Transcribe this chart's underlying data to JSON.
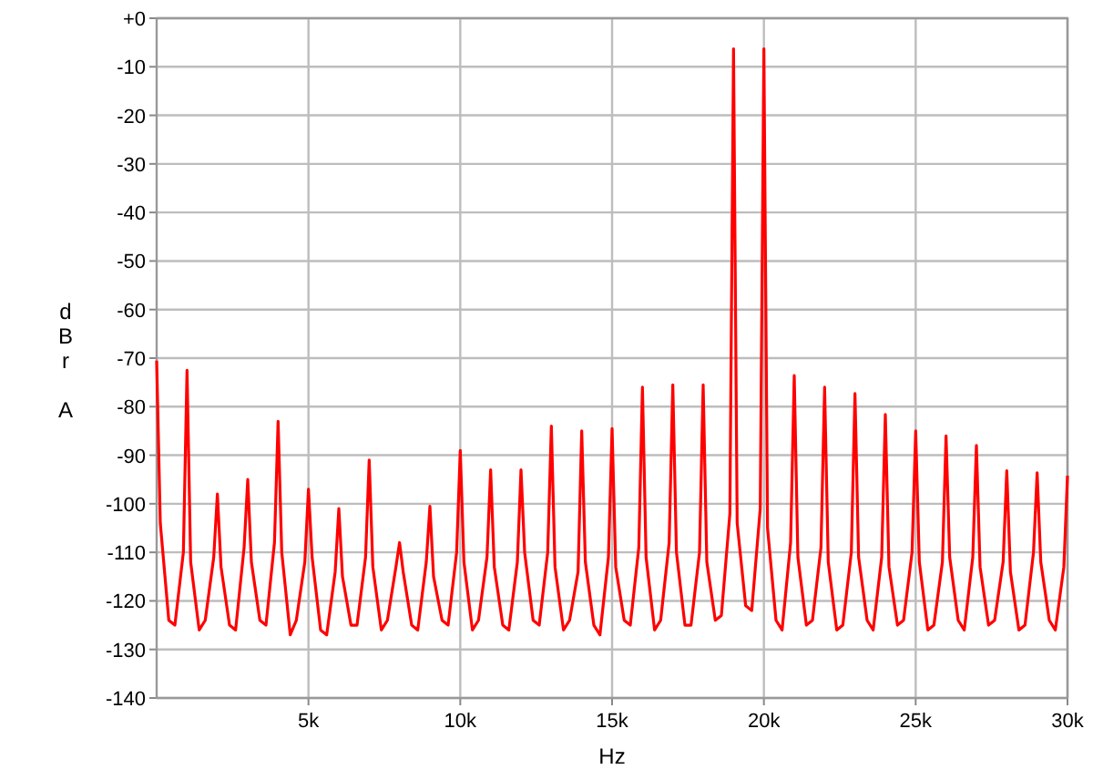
{
  "chart_data": {
    "type": "line",
    "xlabel": "Hz",
    "ylabel": "dBr A",
    "xlim": [
      0,
      30000
    ],
    "xticks": [
      {
        "value": 5000,
        "label": "5k"
      },
      {
        "value": 10000,
        "label": "10k"
      },
      {
        "value": 15000,
        "label": "15k"
      },
      {
        "value": 20000,
        "label": "20k"
      },
      {
        "value": 25000,
        "label": "25k"
      },
      {
        "value": 30000,
        "label": "30k"
      }
    ],
    "ylim": [
      -140,
      0
    ],
    "yticks": [
      {
        "value": 0,
        "label": "+0"
      },
      -10,
      -20,
      -30,
      -40,
      -50,
      -60,
      -70,
      -80,
      -90,
      -100,
      -110,
      -120,
      -130,
      -140
    ],
    "grid": true,
    "marker": "none",
    "line_style": "solid",
    "series": [
      {
        "color": "#ff0000",
        "x": [
          0,
          120,
          400,
          600,
          880,
          1000,
          1120,
          1400,
          1600,
          1880,
          2000,
          2120,
          2400,
          2600,
          2880,
          3000,
          3120,
          3400,
          3600,
          3880,
          4000,
          4120,
          4400,
          4600,
          4880,
          5000,
          5120,
          5400,
          5600,
          5880,
          6000,
          6120,
          6400,
          6600,
          6880,
          7000,
          7120,
          7400,
          7600,
          7880,
          8000,
          8120,
          8400,
          8600,
          8880,
          9000,
          9120,
          9400,
          9600,
          9880,
          10000,
          10120,
          10400,
          10600,
          10880,
          11000,
          11120,
          11400,
          11600,
          11880,
          12000,
          12120,
          12400,
          12600,
          12880,
          13000,
          13120,
          13400,
          13600,
          13880,
          14000,
          14120,
          14400,
          14600,
          14880,
          15000,
          15120,
          15400,
          15600,
          15880,
          16000,
          16120,
          16400,
          16600,
          16880,
          17000,
          17120,
          17400,
          17600,
          17880,
          18000,
          18120,
          18400,
          18600,
          18880,
          19000,
          19120,
          19400,
          19600,
          19880,
          20000,
          20120,
          20400,
          20600,
          20880,
          21000,
          21120,
          21400,
          21600,
          21880,
          22000,
          22120,
          22400,
          22600,
          22880,
          23000,
          23120,
          23400,
          23600,
          23880,
          24000,
          24120,
          24400,
          24600,
          24880,
          25000,
          25120,
          25400,
          25600,
          25880,
          26000,
          26120,
          26400,
          26600,
          26880,
          27000,
          27120,
          27400,
          27600,
          27880,
          28000,
          28120,
          28400,
          28600,
          28880,
          29000,
          29120,
          29400,
          29600,
          29880,
          30000
        ],
        "values": [
          -70.5,
          -104,
          -124,
          -125,
          -110,
          -72.5,
          -112,
          -126,
          -124,
          -111,
          -98,
          -113,
          -125,
          -126,
          -109,
          -95,
          -112,
          -124,
          -125,
          -108,
          -83,
          -110,
          -127,
          -124,
          -112,
          -97,
          -111,
          -126,
          -127,
          -114,
          -101,
          -115,
          -125,
          -125,
          -111,
          -91,
          -113,
          -126,
          -124,
          -113,
          -108,
          -114,
          -125,
          -126,
          -112,
          -100.5,
          -115,
          -124,
          -125,
          -110,
          -89,
          -112,
          -126,
          -124,
          -111,
          -93,
          -113,
          -125,
          -126,
          -112,
          -93,
          -110,
          -124,
          -125,
          -110,
          -84,
          -113,
          -126,
          -124,
          -114,
          -85,
          -112,
          -125,
          -127,
          -111,
          -84.5,
          -113,
          -124,
          -125,
          -109,
          -76,
          -111,
          -126,
          -124,
          -108,
          -75.5,
          -110,
          -125,
          -125,
          -110,
          -75.5,
          -112,
          -124,
          -123,
          -102,
          -6.3,
          -104,
          -121,
          -122,
          -101,
          -6.3,
          -105,
          -124,
          -126,
          -108,
          -73.6,
          -111,
          -125,
          -124,
          -109,
          -76,
          -112,
          -126,
          -125,
          -110,
          -77.3,
          -111,
          -124,
          -126,
          -111,
          -81.6,
          -113,
          -125,
          -124,
          -110,
          -85,
          -112,
          -126,
          -125,
          -112,
          -86,
          -111,
          -124,
          -126,
          -111,
          -88,
          -113,
          -125,
          -124,
          -112,
          -93.2,
          -114,
          -126,
          -125,
          -110,
          -93.6,
          -112,
          -124,
          -126,
          -113,
          -94.2
        ]
      }
    ]
  }
}
